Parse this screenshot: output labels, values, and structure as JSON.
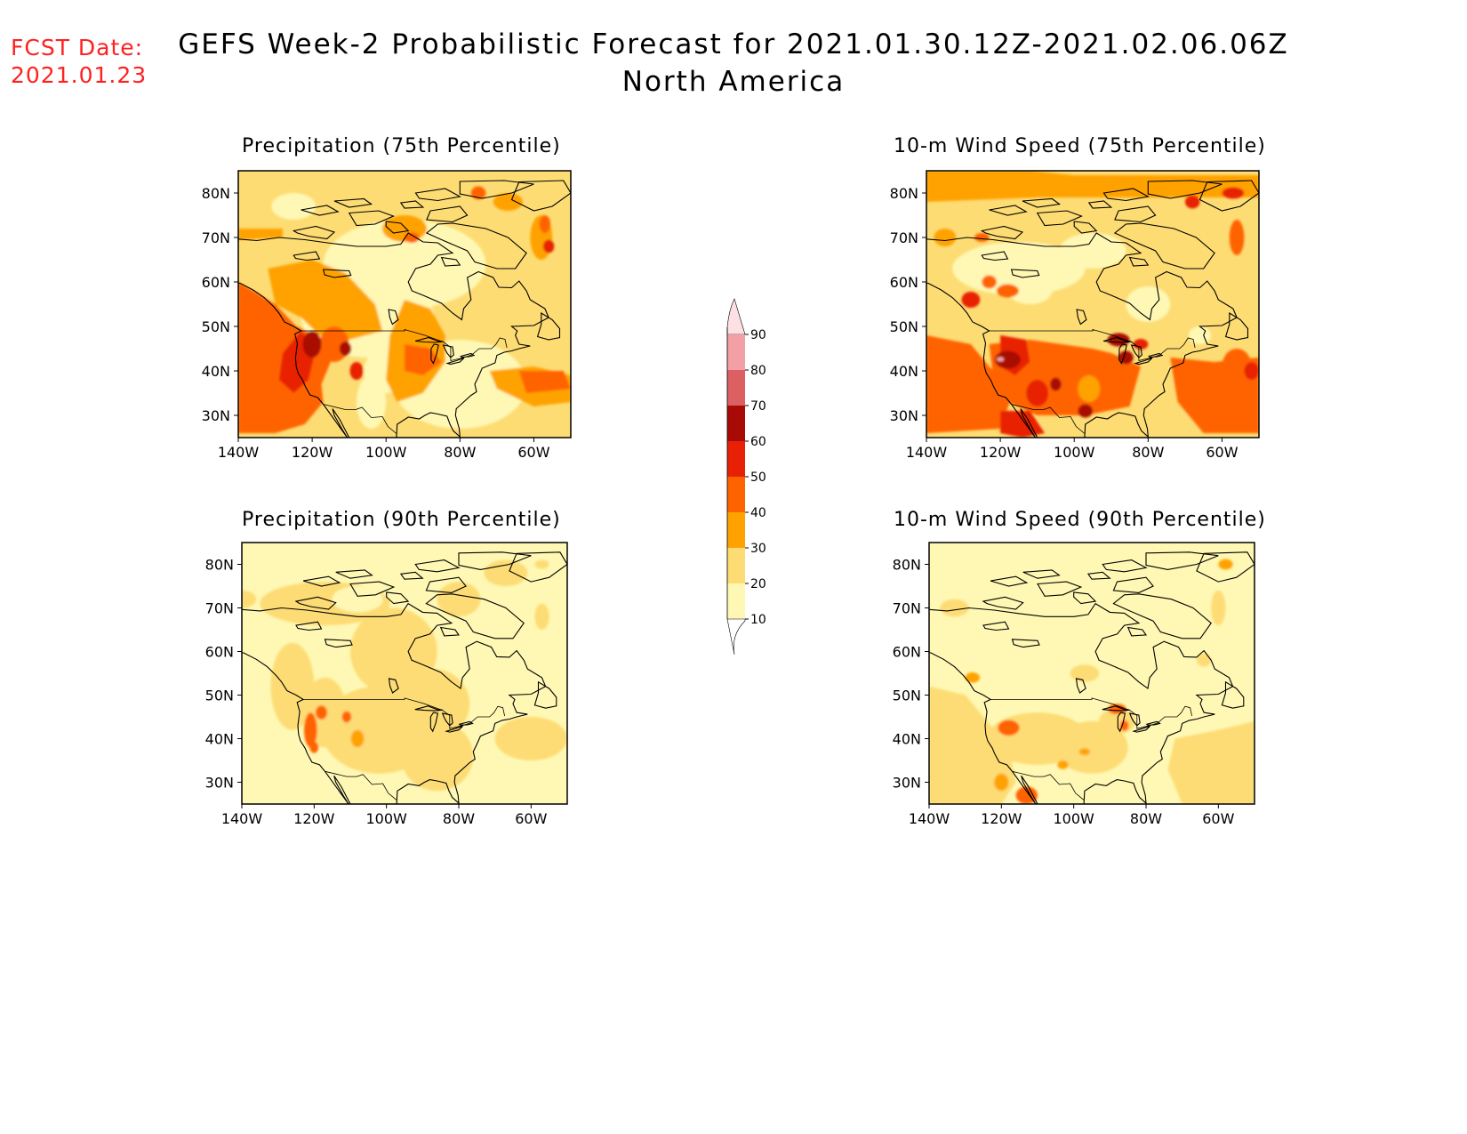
{
  "header": {
    "fcst_label": "FCST Date:",
    "fcst_date": "2021.01.23",
    "title": "GEFS Week-2 Probabilistic Forecast for 2021.01.30.12Z-2021.02.06.06Z",
    "subtitle": "North America"
  },
  "panels": [
    {
      "title": "Precipitation (75th Percentile)"
    },
    {
      "title": "10-m Wind Speed (75th Percentile)"
    },
    {
      "title": "Precipitation (90th Percentile)"
    },
    {
      "title": "10-m Wind Speed (90th Percentile)"
    }
  ],
  "axes": {
    "lat_labels": [
      "80N",
      "70N",
      "60N",
      "50N",
      "40N",
      "30N"
    ],
    "lon_labels": [
      "140W",
      "120W",
      "100W",
      "80W",
      "60W"
    ]
  },
  "colorbar": {
    "labels": [
      "90",
      "80",
      "70",
      "60",
      "50",
      "40",
      "30",
      "20",
      "10"
    ],
    "colors": [
      "#fde0e4",
      "#f2a0a6",
      "#dc5f62",
      "#a80a06",
      "#e82005",
      "#ff6300",
      "#ffa200",
      "#fddc74",
      "#fff8b4"
    ]
  },
  "map_extent": {
    "lon": [
      -140,
      -50
    ],
    "lat": [
      25,
      85
    ]
  }
}
